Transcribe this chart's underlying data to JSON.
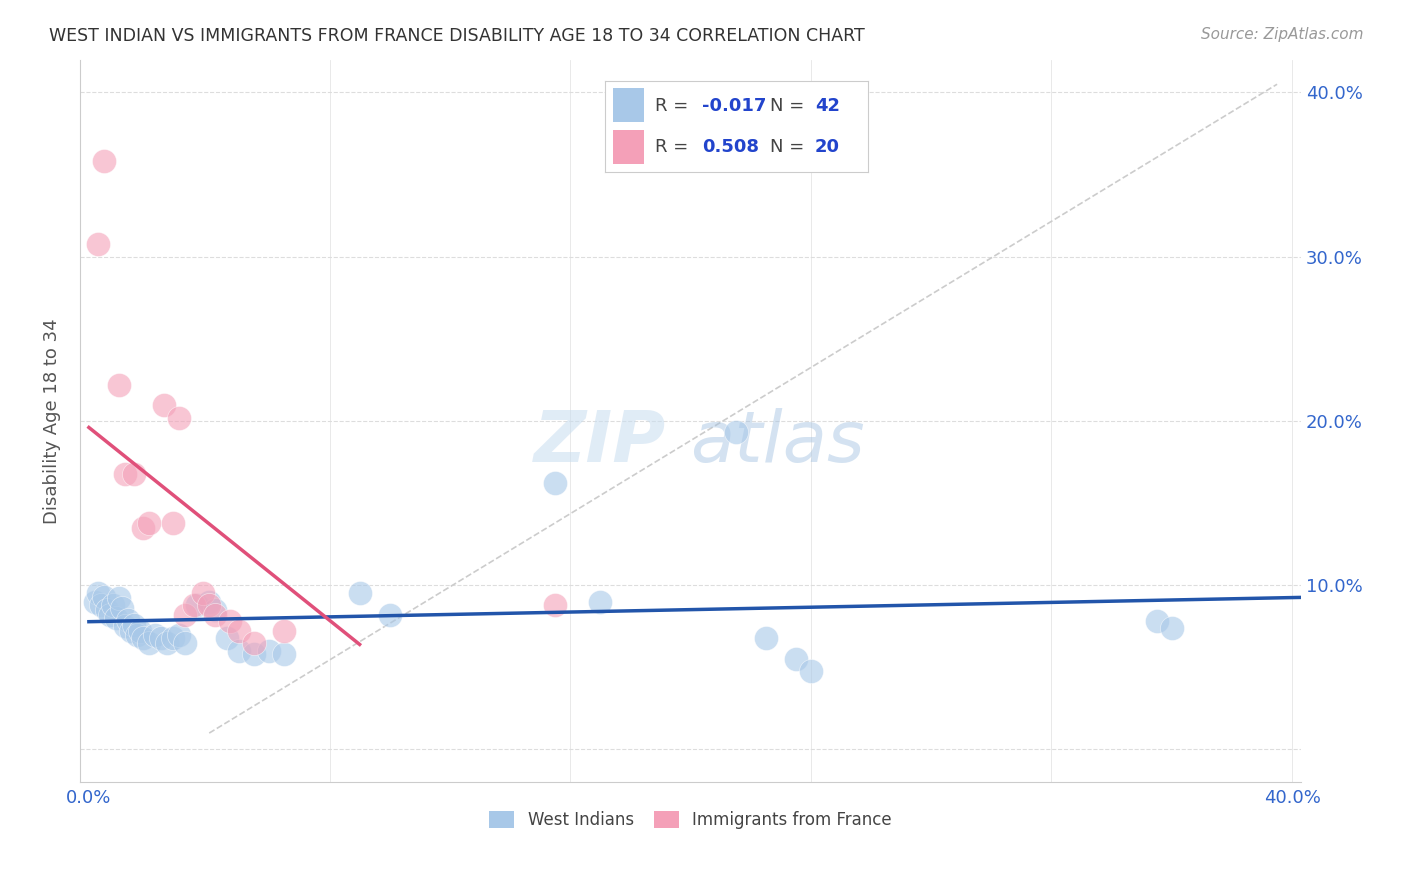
{
  "title": "WEST INDIAN VS IMMIGRANTS FROM FRANCE DISABILITY AGE 18 TO 34 CORRELATION CHART",
  "source": "Source: ZipAtlas.com",
  "ylabel": "Disability Age 18 to 34",
  "xlim": [
    -0.003,
    0.403
  ],
  "ylim": [
    -0.02,
    0.42
  ],
  "xticks": [
    0.0,
    0.08,
    0.16,
    0.24,
    0.32,
    0.4
  ],
  "yticks": [
    0.0,
    0.1,
    0.2,
    0.3,
    0.4
  ],
  "blue_r": -0.017,
  "blue_n": 42,
  "pink_r": 0.508,
  "pink_n": 20,
  "blue_color": "#a8c8e8",
  "pink_color": "#f4a0b8",
  "blue_line_color": "#2255aa",
  "pink_line_color": "#e0507a",
  "dashed_line_color": "#cccccc",
  "background_color": "#ffffff",
  "grid_color": "#dddddd",
  "blue_points": [
    [
      0.002,
      0.09
    ],
    [
      0.003,
      0.095
    ],
    [
      0.004,
      0.088
    ],
    [
      0.005,
      0.093
    ],
    [
      0.006,
      0.085
    ],
    [
      0.007,
      0.082
    ],
    [
      0.008,
      0.088
    ],
    [
      0.009,
      0.08
    ],
    [
      0.01,
      0.092
    ],
    [
      0.011,
      0.086
    ],
    [
      0.012,
      0.075
    ],
    [
      0.013,
      0.079
    ],
    [
      0.014,
      0.072
    ],
    [
      0.015,
      0.076
    ],
    [
      0.016,
      0.07
    ],
    [
      0.017,
      0.072
    ],
    [
      0.018,
      0.068
    ],
    [
      0.02,
      0.065
    ],
    [
      0.022,
      0.07
    ],
    [
      0.024,
      0.068
    ],
    [
      0.026,
      0.065
    ],
    [
      0.028,
      0.068
    ],
    [
      0.03,
      0.07
    ],
    [
      0.032,
      0.065
    ],
    [
      0.036,
      0.088
    ],
    [
      0.04,
      0.09
    ],
    [
      0.042,
      0.085
    ],
    [
      0.046,
      0.068
    ],
    [
      0.05,
      0.06
    ],
    [
      0.055,
      0.058
    ],
    [
      0.06,
      0.06
    ],
    [
      0.065,
      0.058
    ],
    [
      0.09,
      0.095
    ],
    [
      0.1,
      0.082
    ],
    [
      0.155,
      0.162
    ],
    [
      0.17,
      0.09
    ],
    [
      0.215,
      0.193
    ],
    [
      0.225,
      0.068
    ],
    [
      0.235,
      0.055
    ],
    [
      0.24,
      0.048
    ],
    [
      0.355,
      0.078
    ],
    [
      0.36,
      0.074
    ]
  ],
  "pink_points": [
    [
      0.003,
      0.308
    ],
    [
      0.005,
      0.358
    ],
    [
      0.01,
      0.222
    ],
    [
      0.012,
      0.168
    ],
    [
      0.015,
      0.168
    ],
    [
      0.018,
      0.135
    ],
    [
      0.02,
      0.138
    ],
    [
      0.025,
      0.21
    ],
    [
      0.028,
      0.138
    ],
    [
      0.03,
      0.202
    ],
    [
      0.032,
      0.082
    ],
    [
      0.035,
      0.088
    ],
    [
      0.038,
      0.095
    ],
    [
      0.04,
      0.088
    ],
    [
      0.042,
      0.082
    ],
    [
      0.047,
      0.078
    ],
    [
      0.05,
      0.072
    ],
    [
      0.055,
      0.065
    ],
    [
      0.065,
      0.072
    ],
    [
      0.155,
      0.088
    ]
  ],
  "legend_r_blue": "-0.017",
  "legend_n_blue": "42",
  "legend_r_pink": "0.508",
  "legend_n_pink": "20"
}
